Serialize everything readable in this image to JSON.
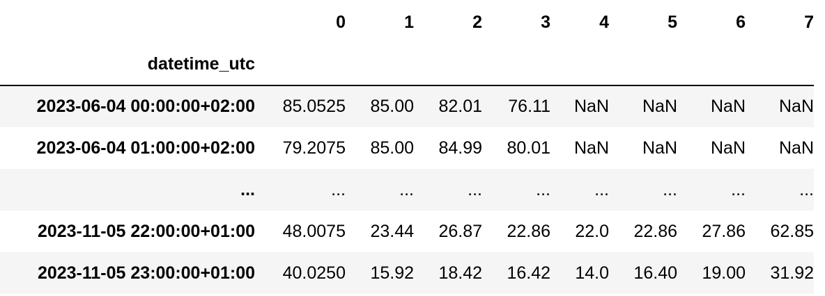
{
  "table": {
    "columns": [
      "0",
      "1",
      "2",
      "3",
      "4",
      "5",
      "6",
      "7"
    ],
    "index_name": "datetime_utc",
    "rows": [
      {
        "index": "2023-06-04 00:00:00+02:00",
        "cells": [
          "85.0525",
          "85.00",
          "82.01",
          "76.11",
          "NaN",
          "NaN",
          "NaN",
          "NaN"
        ]
      },
      {
        "index": "2023-06-04 01:00:00+02:00",
        "cells": [
          "79.2075",
          "85.00",
          "84.99",
          "80.01",
          "NaN",
          "NaN",
          "NaN",
          "NaN"
        ]
      },
      {
        "index": "...",
        "cells": [
          "...",
          "...",
          "...",
          "...",
          "...",
          "...",
          "...",
          "..."
        ]
      },
      {
        "index": "2023-11-05 22:00:00+01:00",
        "cells": [
          "48.0075",
          "23.44",
          "26.87",
          "22.86",
          "22.0",
          "22.86",
          "27.86",
          "62.85"
        ]
      },
      {
        "index": "2023-11-05 23:00:00+01:00",
        "cells": [
          "40.0250",
          "15.92",
          "18.42",
          "16.42",
          "14.0",
          "16.40",
          "19.00",
          "31.92"
        ]
      }
    ]
  }
}
